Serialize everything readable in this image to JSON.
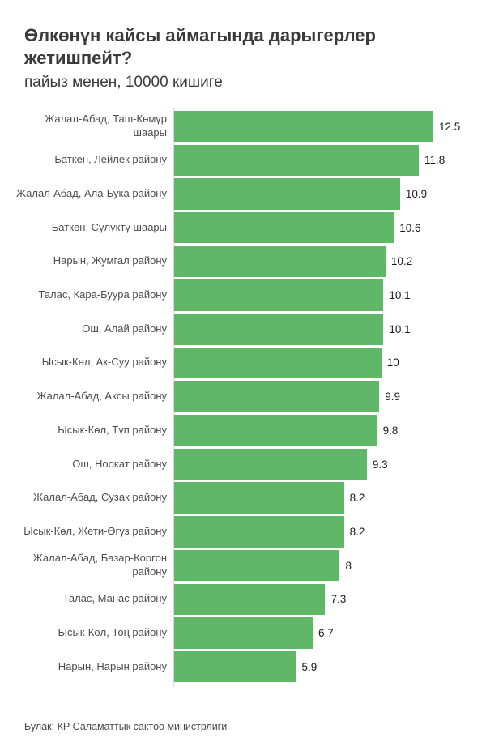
{
  "header": {
    "title": "Өлкөнүн кайсы аймагында дарыгерлер жетишпейт?",
    "subtitle": "пайыз менен, 10000 кишиге"
  },
  "footer": {
    "source": "Булак: КР Саламаттык сактоо министрлиги"
  },
  "colors": {
    "bar": "#60b768",
    "title_text": "#3a3a3a",
    "category_label": "#4d4d4d",
    "value_label": "#1a1a1a",
    "axis_line": "#d9d9d9",
    "background": "#ffffff"
  },
  "chart_data": {
    "type": "bar",
    "orientation": "horizontal",
    "title": "Өлкөнүн кайсы аймагында дарыгерлер жетишпейт?",
    "subtitle": "пайыз менен, 10000 кишиге",
    "source": "Булак: КР Саламаттык сактоо министрлиги",
    "xlabel": "",
    "ylabel": "",
    "xlim": [
      0,
      13
    ],
    "grid": false,
    "legend": false,
    "categories": [
      "Жалал-Абад, Таш-Көмүр\nшаары",
      "Баткен, Лейлек району",
      "Жалал-Абад, Ала-Бука району",
      "Баткен, Сүлүктү шаары",
      "Нарын, Жумгал району",
      "Талас, Кара-Буура району",
      "Ош, Алай району",
      "Ысык-Көл, Ак-Суу району",
      "Жалал-Абад, Аксы району",
      "Ысык-Көл, Түп району",
      "Ош, Ноокат району",
      "Жалал-Абад, Сузак району",
      "Ысык-Көл, Жети-Өгүз району",
      "Жалал-Абад, Базар-Коргон\nрайону",
      "Талас, Манас району",
      "Ысык-Көл, Тоң району",
      "Нарын, Нарын району"
    ],
    "values": [
      12.5,
      11.8,
      10.9,
      10.6,
      10.2,
      10.1,
      10.1,
      10,
      9.9,
      9.8,
      9.3,
      8.2,
      8.2,
      8,
      7.3,
      6.7,
      5.9
    ],
    "value_labels": [
      "12.5",
      "11.8",
      "10.9",
      "10.6",
      "10.2",
      "10.1",
      "10.1",
      "10",
      "9.9",
      "9.8",
      "9.3",
      "8.2",
      "8.2",
      "8",
      "7.3",
      "6.7",
      "5.9"
    ]
  }
}
